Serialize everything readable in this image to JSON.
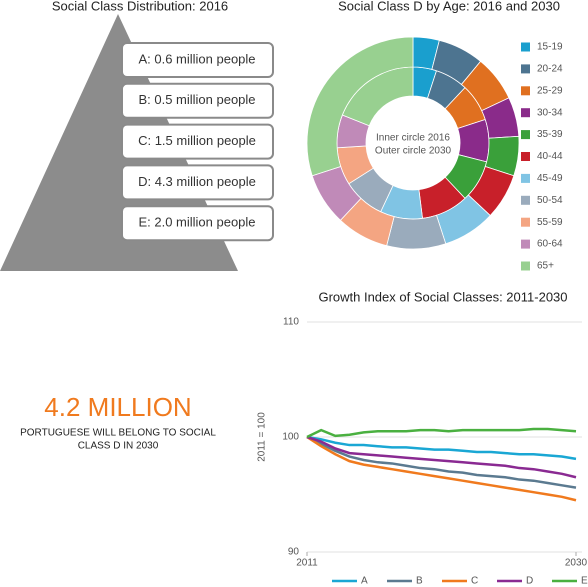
{
  "class_distribution": {
    "title": "Social Class Distribution: 2016",
    "items": [
      {
        "text": "A: 0.6 million people",
        "color": "#555555"
      },
      {
        "text": "B: 0.5 million people",
        "color": "#555555"
      },
      {
        "text": "C: 1.5 million people",
        "color": "#555555"
      },
      {
        "text": "D: 4.3 million people",
        "color": "#f07a1e"
      },
      {
        "text": "E: 2.0 million people",
        "color": "#555555"
      }
    ]
  },
  "highlight": {
    "headline": "4.2 MILLION",
    "lines": [
      "PORTUGUESE WILL BELONG TO SOCIAL",
      "CLASS D IN 2030"
    ]
  },
  "chart_data": [
    {
      "type": "donut",
      "title": "Social Class D by Age: 2016 and 2030",
      "center_text": [
        "Inner circle 2016",
        "Outer circle 2030"
      ],
      "categories": [
        "15-19",
        "20-24",
        "25-29",
        "30-34",
        "35-39",
        "40-44",
        "45-49",
        "50-54",
        "55-59",
        "60-64",
        "65+"
      ],
      "colors": [
        "#1a9fce",
        "#4d7490",
        "#e07020",
        "#8a2b8a",
        "#3aa03a",
        "#c8202a",
        "#80c4e4",
        "#9aabbc",
        "#f4a582",
        "#c08ab8",
        "#98d090"
      ],
      "series": [
        {
          "values": [
            5,
            7,
            8,
            9,
            9,
            10,
            9,
            9,
            8,
            7,
            19
          ]
        },
        {
          "values": [
            4,
            7,
            7,
            6,
            6,
            7,
            8,
            9,
            8,
            8,
            30
          ]
        }
      ]
    },
    {
      "type": "line",
      "title": "Growth Index of Social Classes: 2011-2030",
      "ylabel": "2011 = 100",
      "x": [
        2011,
        2012,
        2013,
        2014,
        2015,
        2016,
        2017,
        2018,
        2019,
        2020,
        2021,
        2022,
        2023,
        2024,
        2025,
        2026,
        2027,
        2028,
        2029,
        2030
      ],
      "xlim": [
        2011,
        2030
      ],
      "xticks": [
        2011,
        2030
      ],
      "ylim": [
        90,
        110
      ],
      "yticks": [
        90,
        100,
        110
      ],
      "grid": true,
      "series": [
        {
          "name": "A",
          "color": "#1aa7d4",
          "values": [
            100,
            99.8,
            99.5,
            99.3,
            99.3,
            99.2,
            99.1,
            99.1,
            99.0,
            98.9,
            98.9,
            98.8,
            98.7,
            98.7,
            98.6,
            98.5,
            98.5,
            98.4,
            98.3,
            98.1
          ]
        },
        {
          "name": "B",
          "color": "#5b7a90",
          "values": [
            100,
            99.4,
            98.8,
            98.3,
            98.0,
            97.8,
            97.7,
            97.5,
            97.3,
            97.2,
            97.0,
            96.9,
            96.7,
            96.6,
            96.5,
            96.3,
            96.2,
            96.0,
            95.8,
            95.6
          ]
        },
        {
          "name": "C",
          "color": "#f07a1e",
          "values": [
            100,
            99.2,
            98.5,
            97.9,
            97.6,
            97.4,
            97.2,
            97.0,
            96.8,
            96.6,
            96.4,
            96.2,
            96.0,
            95.8,
            95.6,
            95.4,
            95.2,
            95.0,
            94.8,
            94.5
          ]
        },
        {
          "name": "D",
          "color": "#8a2a92",
          "values": [
            100,
            99.6,
            99.0,
            98.6,
            98.5,
            98.4,
            98.3,
            98.2,
            98.1,
            98.0,
            97.9,
            97.8,
            97.7,
            97.6,
            97.5,
            97.3,
            97.2,
            97.0,
            96.8,
            96.5
          ]
        },
        {
          "name": "E",
          "color": "#4ab040",
          "values": [
            100,
            100.6,
            100.1,
            100.2,
            100.4,
            100.5,
            100.5,
            100.5,
            100.6,
            100.6,
            100.5,
            100.6,
            100.6,
            100.6,
            100.6,
            100.6,
            100.7,
            100.7,
            100.6,
            100.5
          ]
        }
      ]
    }
  ]
}
